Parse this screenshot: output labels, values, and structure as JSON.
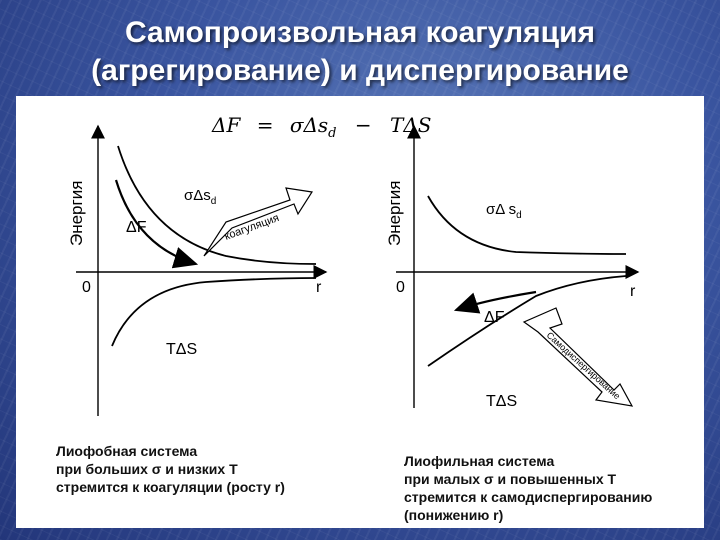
{
  "title": {
    "line1": "Самопроизвольная коагуляция",
    "line2": "(агрегирование) и диспергирование"
  },
  "formula": {
    "lhs": "ΔF",
    "eq": "=",
    "term1": "σΔs",
    "term1_sub": "d",
    "minus": "−",
    "term2": "TΔS"
  },
  "left": {
    "axis_y": "Энергия",
    "axis_x": "r",
    "origin": "0",
    "sigma_label": "σΔs",
    "sigma_sub": "d",
    "delta_f": "ΔF",
    "t_delta_s": "TΔS",
    "arrow_label": "коагуляция",
    "caption": [
      "Лиофобная система",
      "при больших σ и низких T",
      "стремится к коагуляции (росту r)"
    ]
  },
  "right": {
    "axis_y": "Энергия",
    "axis_x": "r",
    "origin": "0",
    "sigma_label": "σΔ s",
    "sigma_sub": "d",
    "delta_f": "ΔF",
    "t_delta_s": "TΔS",
    "arrow_label": "Самодиспергирование",
    "caption": [
      "Лиофильная система",
      "при малых σ и повышенных T",
      "стремится к самодиспергированию",
      "(понижению r)"
    ]
  }
}
